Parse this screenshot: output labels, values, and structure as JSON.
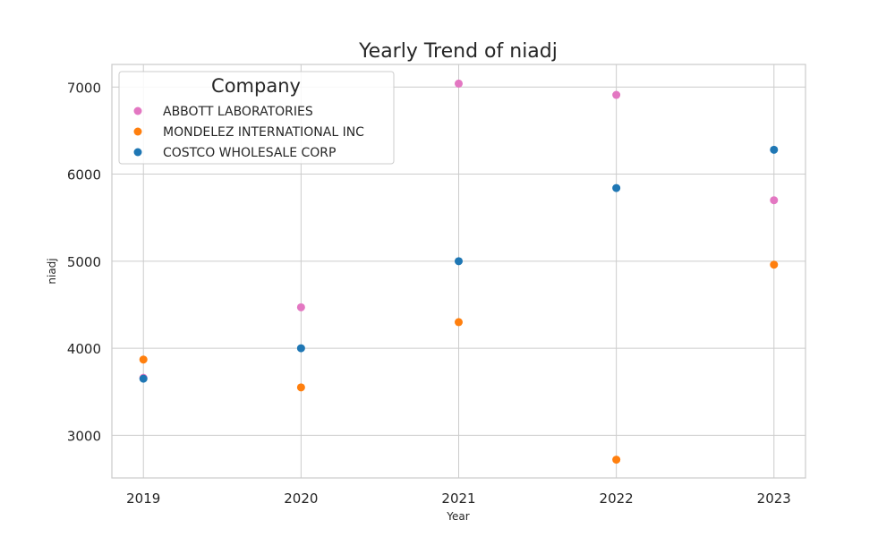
{
  "chart_data": {
    "type": "scatter",
    "title": "Yearly Trend of niadj",
    "xlabel": "Year",
    "ylabel": "niadj",
    "x": [
      2019,
      2020,
      2021,
      2022,
      2023
    ],
    "x_ticks": [
      "2019",
      "2020",
      "2021",
      "2022",
      "2023"
    ],
    "y_ticks": [
      "3000",
      "4000",
      "5000",
      "6000",
      "7000"
    ],
    "y_tick_values": [
      3000,
      4000,
      5000,
      6000,
      7000
    ],
    "xlim": [
      2018.8,
      2023.2
    ],
    "ylim": [
      2510,
      7260
    ],
    "grid": true,
    "legend": {
      "title": "Company",
      "placement": "top-left"
    },
    "series": [
      {
        "name": "ABBOTT LABORATORIES",
        "color": "#e377c2",
        "values": [
          3660,
          4470,
          7040,
          6910,
          5700
        ]
      },
      {
        "name": "MONDELEZ INTERNATIONAL INC",
        "color": "#ff7f0e",
        "values": [
          3870,
          3550,
          4300,
          2720,
          4960
        ]
      },
      {
        "name": "COSTCO WHOLESALE CORP",
        "color": "#1f77b4",
        "values": [
          3650,
          4000,
          5000,
          5840,
          6280
        ]
      }
    ]
  }
}
